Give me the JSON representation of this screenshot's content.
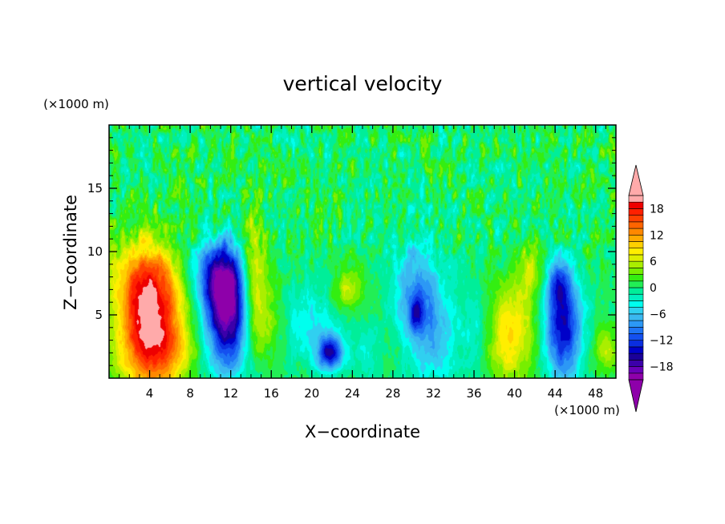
{
  "chart_data": {
    "type": "heatmap",
    "title": "vertical velocity",
    "xlabel": "X−coordinate",
    "ylabel": "Z−coordinate",
    "x_unit": "(×1000 m)",
    "y_unit": "(×1000 m)",
    "xlim": [
      0,
      50
    ],
    "ylim": [
      0,
      20
    ],
    "x_ticks": [
      4,
      8,
      12,
      16,
      20,
      24,
      28,
      32,
      36,
      40,
      44,
      48
    ],
    "y_ticks": [
      5,
      10,
      15
    ],
    "colorbar": {
      "levels": [
        -21,
        -19.5,
        -18,
        -16.5,
        -15,
        -13.5,
        -12,
        -10.5,
        -9,
        -7.5,
        -6,
        -4.5,
        -3,
        -1.5,
        0,
        1.5,
        3,
        4.5,
        6,
        7.5,
        9,
        10.5,
        12,
        13.5,
        15,
        16.5,
        18,
        19.5,
        21
      ],
      "tick_labels": [
        "18",
        "12",
        "6",
        "0",
        "−6",
        "−12",
        "−18"
      ],
      "tick_values": [
        18,
        12,
        6,
        0,
        -6,
        -12,
        -18
      ],
      "colors": [
        "#8e00aa",
        "#6a00b8",
        "#3c00aa",
        "#1a0099",
        "#0000c8",
        "#0a2ee0",
        "#1450f0",
        "#1e74f5",
        "#2c98f5",
        "#3ab8f0",
        "#30d0f0",
        "#00ffee",
        "#00f0c0",
        "#00ee99",
        "#22ee55",
        "#33ee11",
        "#77ee00",
        "#aaee00",
        "#ddee00",
        "#ffee00",
        "#ffd000",
        "#ffaa00",
        "#ff8800",
        "#ff6400",
        "#ff4000",
        "#ff2000",
        "#ee0000",
        "#ffaaaa"
      ],
      "over_color": "#ffaaaa",
      "under_color": "#8e00aa"
    },
    "features": [
      {
        "x": 4.0,
        "z": 4.2,
        "sx": 2.2,
        "sz": 3.8,
        "amp": 19
      },
      {
        "x": 3.5,
        "z": 8.0,
        "sx": 2.5,
        "sz": 2.5,
        "amp": 6
      },
      {
        "x": 11.8,
        "z": 5.3,
        "sx": 1.6,
        "sz": 3.2,
        "amp": -20
      },
      {
        "x": 10.8,
        "z": 8.0,
        "sx": 1.5,
        "sz": 1.8,
        "amp": -10
      },
      {
        "x": 14.3,
        "z": 7.5,
        "sx": 1.0,
        "sz": 3.5,
        "amp": 9
      },
      {
        "x": 15.5,
        "z": 4.5,
        "sx": 1.5,
        "sz": 2.0,
        "amp": 4
      },
      {
        "x": 21.8,
        "z": 2.0,
        "sx": 0.9,
        "sz": 1.0,
        "amp": -15
      },
      {
        "x": 19.5,
        "z": 4.5,
        "sx": 2.0,
        "sz": 2.0,
        "amp": -5
      },
      {
        "x": 23.5,
        "z": 7.0,
        "sx": 1.0,
        "sz": 1.2,
        "amp": 6
      },
      {
        "x": 25.5,
        "z": 2.5,
        "sx": 1.2,
        "sz": 1.5,
        "amp": -4
      },
      {
        "x": 30.3,
        "z": 6.0,
        "sx": 1.5,
        "sz": 3.5,
        "amp": -9
      },
      {
        "x": 30.3,
        "z": 5.0,
        "sx": 0.5,
        "sz": 1.0,
        "amp": -6
      },
      {
        "x": 32.5,
        "z": 3.5,
        "sx": 1.5,
        "sz": 3.0,
        "amp": -5
      },
      {
        "x": 39.5,
        "z": 3.5,
        "sx": 1.8,
        "sz": 2.8,
        "amp": 9
      },
      {
        "x": 41.5,
        "z": 8.5,
        "sx": 0.8,
        "sz": 1.5,
        "amp": 5
      },
      {
        "x": 44.8,
        "z": 4.0,
        "sx": 1.3,
        "sz": 3.0,
        "amp": -15
      },
      {
        "x": 44.3,
        "z": 7.5,
        "sx": 0.7,
        "sz": 1.5,
        "amp": -8
      },
      {
        "x": 49.0,
        "z": 2.2,
        "sx": 1.0,
        "sz": 1.2,
        "amp": 5
      },
      {
        "x": 6.0,
        "z": 2.0,
        "sx": 2.0,
        "sz": 1.5,
        "amp": 4
      },
      {
        "x": 28.0,
        "z": 2.5,
        "sx": 2.0,
        "sz": 1.5,
        "amp": 2
      },
      {
        "x": 36.5,
        "z": 4.0,
        "sx": 1.2,
        "sz": 2.5,
        "amp": -4
      },
      {
        "x": 8.5,
        "z": 9.5,
        "sx": 1.8,
        "sz": 1.2,
        "amp": -3
      }
    ],
    "upper_noise_amplitude": 3.2,
    "background_value": 0.3
  }
}
